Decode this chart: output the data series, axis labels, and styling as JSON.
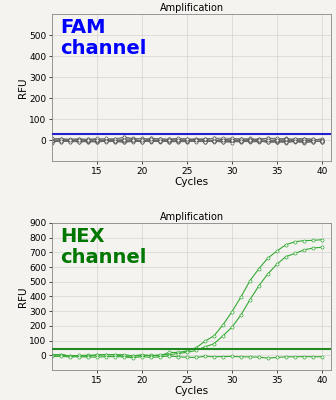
{
  "title": "Amplification",
  "xlabel": "Cycles",
  "ylabel": "RFU",
  "fam_label": "FAM\nchannel",
  "hex_label": "HEX\nchannel",
  "fam_ylim": [
    -100,
    600
  ],
  "fam_yticks": [
    0,
    100,
    200,
    300,
    400,
    500
  ],
  "hex_ylim": [
    -100,
    900
  ],
  "hex_yticks": [
    0,
    100,
    200,
    300,
    400,
    500,
    600,
    700,
    800,
    900
  ],
  "xlim": [
    10,
    41
  ],
  "xticks": [
    15,
    20,
    25,
    30,
    35,
    40
  ],
  "fam_color": "#2222cc",
  "hex_color": "#33aa33",
  "hex_color_dark": "#228822",
  "background_color": "#f5f3ef",
  "grid_color": "#cccccc",
  "fam_threshold": 28,
  "hex_threshold": 45,
  "fam_label_color": "#0000ff",
  "hex_label_color": "#007700"
}
